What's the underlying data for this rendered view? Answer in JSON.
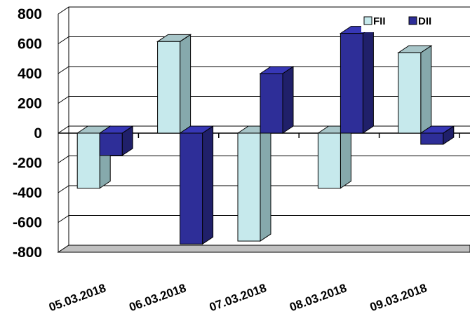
{
  "chart_data": {
    "type": "bar",
    "style": "3d-clustered-column",
    "categories": [
      "05.03.2018",
      "06.03.2018",
      "07.03.2018",
      "08.03.2018",
      "09.03.2018"
    ],
    "series": [
      {
        "name": "FII",
        "values": [
          -370,
          615,
          -725,
          -370,
          540
        ],
        "color": "#c6e9ec",
        "side_color": "#86a9ac"
      },
      {
        "name": "DII",
        "values": [
          -150,
          -745,
          400,
          670,
          -75
        ],
        "color": "#2e2e98",
        "side_color": "#20206a"
      }
    ],
    "ylim": [
      -800,
      800
    ],
    "yticks": [
      "800",
      "600",
      "400",
      "200",
      "0",
      "-200",
      "-400",
      "-600",
      "-800"
    ],
    "grid": true,
    "legend_position": "top-right",
    "title": "",
    "xlabel": "",
    "ylabel": ""
  }
}
